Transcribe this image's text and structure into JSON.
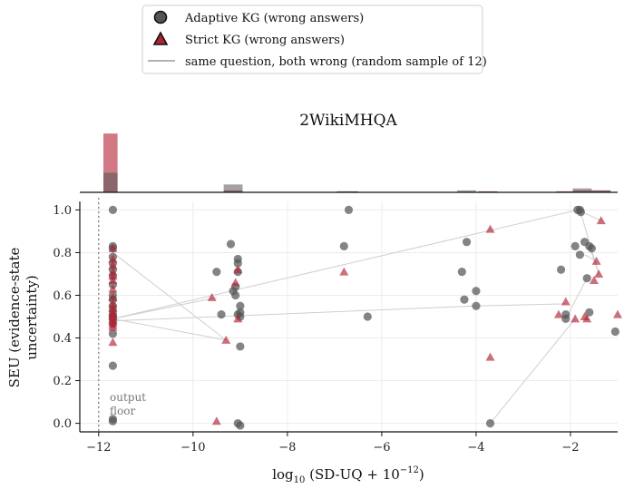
{
  "chart_data": {
    "type": "scatter",
    "title": "2WikiMHQA",
    "xlabel_main": "log",
    "xlabel_sub": "10",
    "xlabel_rest": " (SD-UQ + 10",
    "xlabel_sup": "−12",
    "xlabel_end": ")",
    "ylabel_line1": "SEU (evidence-state",
    "ylabel_line2": "uncertainty)",
    "xlim": [
      -12.4,
      -1.0
    ],
    "ylim": [
      -0.04,
      1.04
    ],
    "xticks": [
      -12,
      -10,
      -8,
      -6,
      -4,
      -2
    ],
    "xtick_labels": [
      "−12",
      "−10",
      "−8",
      "−6",
      "−4",
      "−2"
    ],
    "yticks": [
      0.0,
      0.2,
      0.4,
      0.6,
      0.8,
      1.0
    ],
    "ytick_labels": [
      "0.0",
      "0.2",
      "0.4",
      "0.6",
      "0.8",
      "1.0"
    ],
    "grid": true,
    "floor_line_x": -12,
    "annotation_line1": "output",
    "annotation_line2": "floor",
    "legend_placement": "top-center",
    "legend": [
      {
        "label": "Adaptive KG (wrong answers)",
        "marker": "circle",
        "color": "#555555"
      },
      {
        "label": "Strict KG (wrong answers)",
        "marker": "triangle",
        "color": "#b22234"
      },
      {
        "label": "same question, both wrong (random sample of 12)",
        "marker": "line",
        "color": "#999999"
      }
    ],
    "colors": {
      "adaptive": "#555555",
      "strict": "#b22234",
      "pair_line": "#cfcfcf"
    },
    "series": [
      {
        "name": "Adaptive KG (wrong answers)",
        "points": [
          [
            -11.7,
            1.0
          ],
          [
            -11.7,
            0.83
          ],
          [
            -11.7,
            0.82
          ],
          [
            -11.7,
            0.78
          ],
          [
            -11.7,
            0.75
          ],
          [
            -11.7,
            0.72
          ],
          [
            -11.7,
            0.69
          ],
          [
            -11.7,
            0.65
          ],
          [
            -11.7,
            0.6
          ],
          [
            -11.7,
            0.58
          ],
          [
            -11.7,
            0.55
          ],
          [
            -11.7,
            0.53
          ],
          [
            -11.7,
            0.51
          ],
          [
            -11.7,
            0.5
          ],
          [
            -11.7,
            0.49
          ],
          [
            -11.7,
            0.47
          ],
          [
            -11.7,
            0.42
          ],
          [
            -11.7,
            0.27
          ],
          [
            -11.7,
            0.02
          ],
          [
            -11.7,
            0.01
          ],
          [
            -9.5,
            0.71
          ],
          [
            -9.4,
            0.51
          ],
          [
            -9.2,
            0.84
          ],
          [
            -9.15,
            0.62
          ],
          [
            -9.1,
            0.64
          ],
          [
            -9.1,
            0.6
          ],
          [
            -9.05,
            0.77
          ],
          [
            -9.05,
            0.75
          ],
          [
            -9.05,
            0.71
          ],
          [
            -9.0,
            0.55
          ],
          [
            -9.0,
            0.52
          ],
          [
            -9.05,
            0.51
          ],
          [
            -9.0,
            0.5
          ],
          [
            -9.0,
            0.36
          ],
          [
            -9.05,
            0.0
          ],
          [
            -9.0,
            -0.01
          ],
          [
            -6.7,
            1.0
          ],
          [
            -6.8,
            0.83
          ],
          [
            -6.3,
            0.5
          ],
          [
            -4.3,
            0.71
          ],
          [
            -4.2,
            0.85
          ],
          [
            -4.25,
            0.58
          ],
          [
            -4.0,
            0.62
          ],
          [
            -4.0,
            0.55
          ],
          [
            -3.7,
            0.0
          ],
          [
            -2.2,
            0.72
          ],
          [
            -2.1,
            0.51
          ],
          [
            -2.1,
            0.49
          ],
          [
            -1.9,
            0.83
          ],
          [
            -1.85,
            1.0
          ],
          [
            -1.8,
            1.0
          ],
          [
            -1.78,
            0.99
          ],
          [
            -1.8,
            0.79
          ],
          [
            -1.7,
            0.85
          ],
          [
            -1.65,
            0.68
          ],
          [
            -1.6,
            0.83
          ],
          [
            -1.6,
            0.52
          ],
          [
            -1.55,
            0.82
          ],
          [
            -1.05,
            0.43
          ]
        ]
      },
      {
        "name": "Strict KG (wrong answers)",
        "points": [
          [
            -11.7,
            0.82
          ],
          [
            -11.7,
            0.77
          ],
          [
            -11.7,
            0.74
          ],
          [
            -11.7,
            0.71
          ],
          [
            -11.7,
            0.69
          ],
          [
            -11.7,
            0.67
          ],
          [
            -11.7,
            0.63
          ],
          [
            -11.7,
            0.59
          ],
          [
            -11.7,
            0.56
          ],
          [
            -11.7,
            0.54
          ],
          [
            -11.7,
            0.52
          ],
          [
            -11.7,
            0.51
          ],
          [
            -11.7,
            0.5
          ],
          [
            -11.7,
            0.49
          ],
          [
            -11.7,
            0.48
          ],
          [
            -11.7,
            0.47
          ],
          [
            -11.7,
            0.46
          ],
          [
            -11.7,
            0.45
          ],
          [
            -11.7,
            0.38
          ],
          [
            -9.6,
            0.59
          ],
          [
            -9.5,
            0.01
          ],
          [
            -9.3,
            0.39
          ],
          [
            -9.05,
            0.72
          ],
          [
            -9.1,
            0.66
          ],
          [
            -9.05,
            0.49
          ],
          [
            -6.8,
            0.71
          ],
          [
            -3.7,
            0.91
          ],
          [
            -3.7,
            0.31
          ],
          [
            -2.25,
            0.51
          ],
          [
            -2.1,
            0.57
          ],
          [
            -1.9,
            0.49
          ],
          [
            -1.7,
            0.5
          ],
          [
            -1.65,
            0.49
          ],
          [
            -1.5,
            0.67
          ],
          [
            -1.45,
            0.76
          ],
          [
            -1.4,
            0.7
          ],
          [
            -1.35,
            0.95
          ],
          [
            -1.0,
            0.51
          ]
        ]
      }
    ],
    "pairs": [
      [
        [
          -11.7,
          0.8
        ],
        [
          -9.3,
          0.39
        ]
      ],
      [
        [
          -11.7,
          0.49
        ],
        [
          -9.5,
          0.59
        ]
      ],
      [
        [
          -11.7,
          0.49
        ],
        [
          -9.3,
          0.39
        ]
      ],
      [
        [
          -11.7,
          0.49
        ],
        [
          -1.85,
          1.0
        ]
      ],
      [
        [
          -11.7,
          0.48
        ],
        [
          -4.0,
          0.55
        ]
      ],
      [
        [
          -4.0,
          0.55
        ],
        [
          -2.1,
          0.56
        ]
      ],
      [
        [
          -3.7,
          0.0
        ],
        [
          -1.9,
          0.49
        ]
      ],
      [
        [
          -1.8,
          1.0
        ],
        [
          -1.4,
          0.7
        ]
      ],
      [
        [
          -1.85,
          1.0
        ],
        [
          -1.35,
          0.95
        ]
      ],
      [
        [
          -1.7,
          0.79
        ],
        [
          -1.45,
          0.76
        ]
      ],
      [
        [
          -2.1,
          0.49
        ],
        [
          -1.65,
          0.68
        ]
      ],
      [
        [
          -1.6,
          0.83
        ],
        [
          -1.4,
          0.7
        ]
      ]
    ],
    "histogram": {
      "bin_edges": [
        -11.9,
        -11.6,
        -9.35,
        -8.95,
        -6.95,
        -6.5,
        -4.4,
        -4.0,
        -3.95,
        -3.55,
        -2.3,
        -1.95,
        -1.55,
        -1.15
      ],
      "bins": [
        {
          "x0": -11.9,
          "x1": -11.6,
          "adaptive": 20,
          "strict": 60
        },
        {
          "x0": -9.35,
          "x1": -8.95,
          "adaptive": 8,
          "strict": 2
        },
        {
          "x0": -6.95,
          "x1": -6.5,
          "adaptive": 1,
          "strict": 1
        },
        {
          "x0": -4.4,
          "x1": -4.0,
          "adaptive": 2,
          "strict": 0
        },
        {
          "x0": -3.95,
          "x1": -3.55,
          "adaptive": 1,
          "strict": 1
        },
        {
          "x0": -2.3,
          "x1": -1.95,
          "adaptive": 1,
          "strict": 1
        },
        {
          "x0": -1.95,
          "x1": -1.55,
          "adaptive": 4,
          "strict": 2
        },
        {
          "x0": -1.55,
          "x1": -1.15,
          "adaptive": 2,
          "strict": 2
        }
      ],
      "max": 62
    }
  }
}
